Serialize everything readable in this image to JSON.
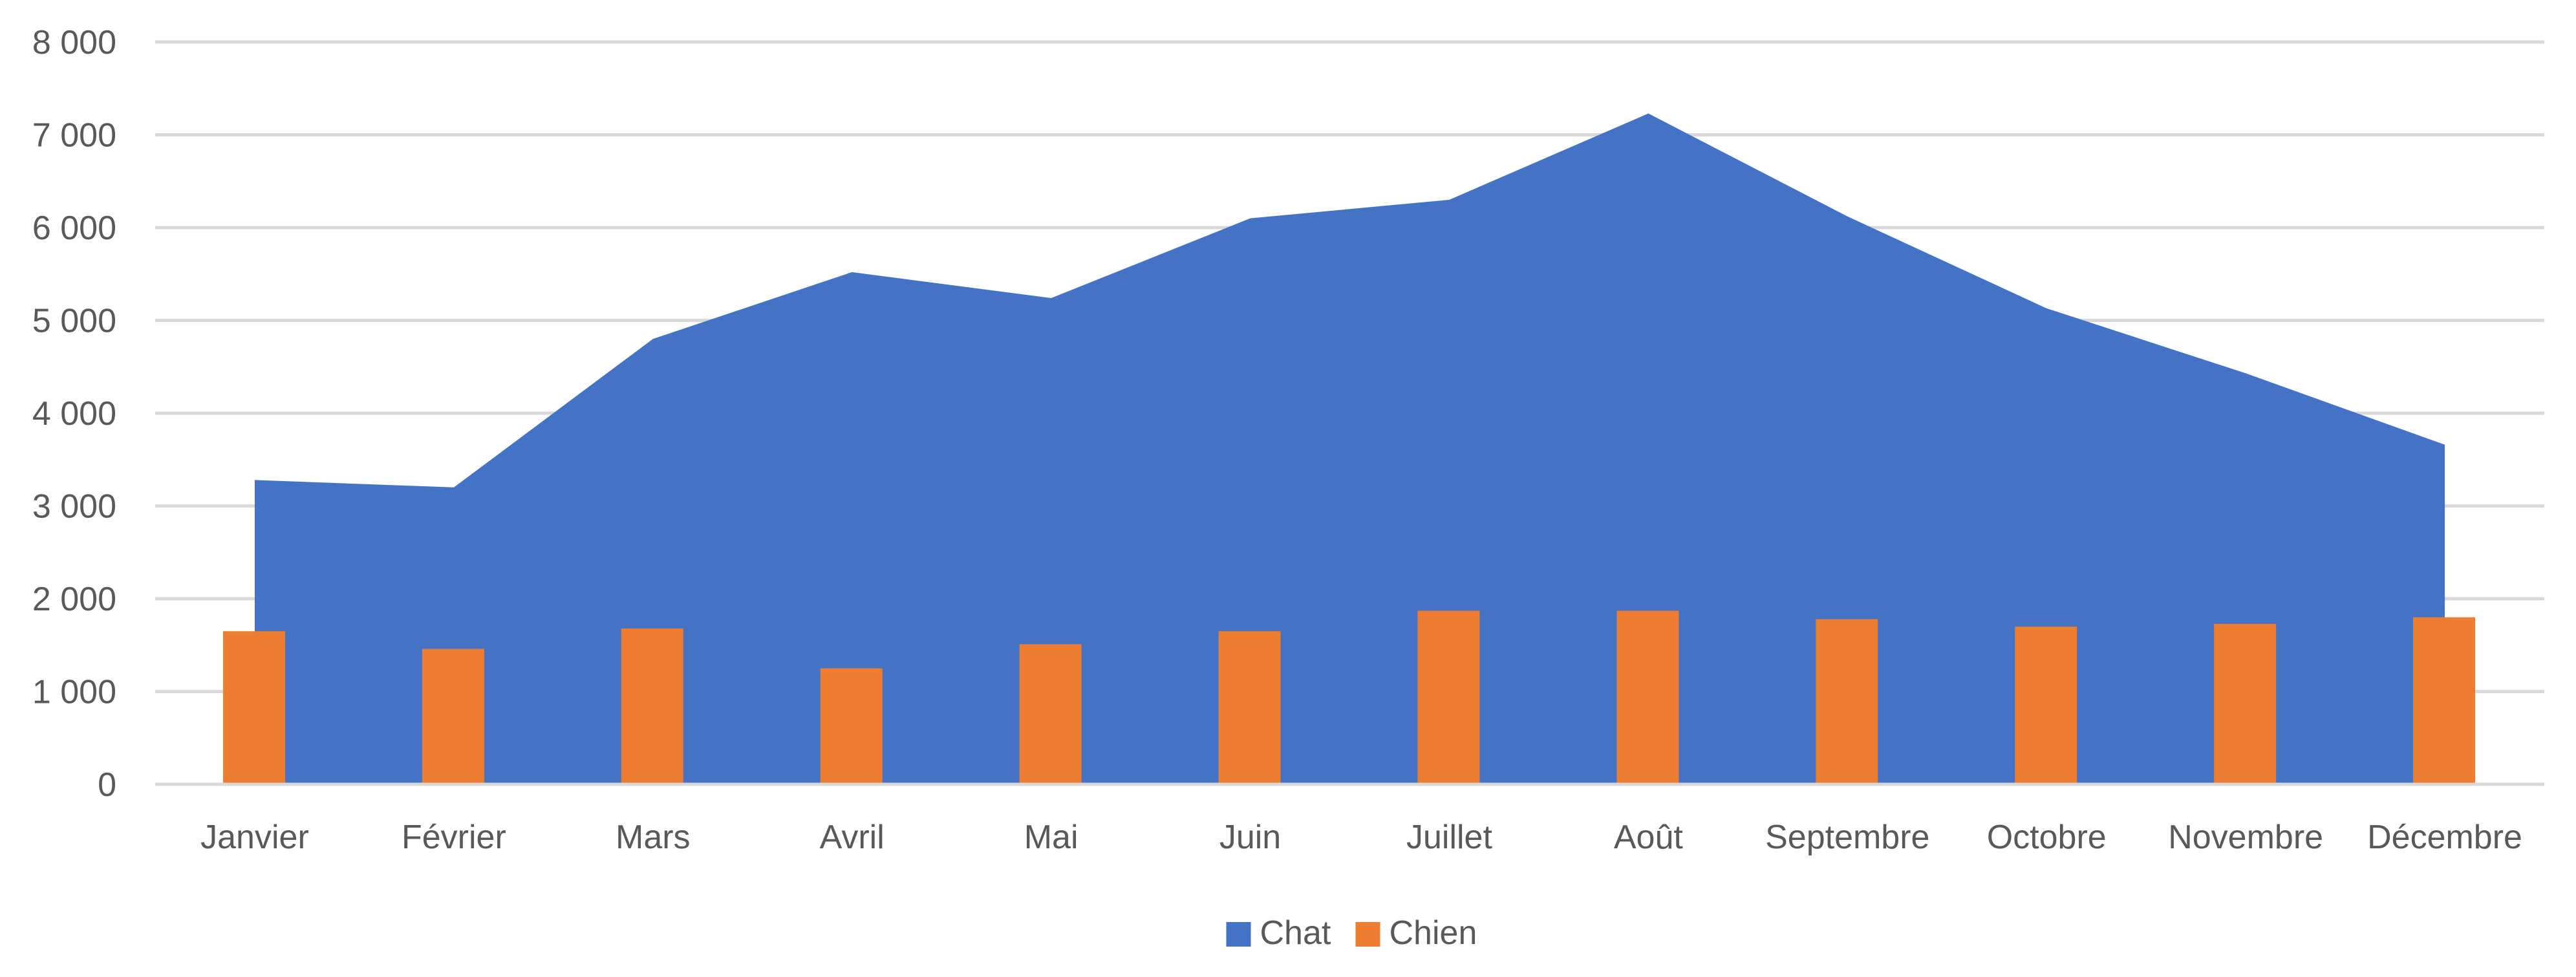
{
  "chart_data": {
    "type": "area",
    "title": "",
    "xlabel": "",
    "ylabel": "",
    "categories": [
      "Janvier",
      "Février",
      "Mars",
      "Avril",
      "Mai",
      "Juin",
      "Juillet",
      "Août",
      "Septembre",
      "Octobre",
      "Novembre",
      "Décembre"
    ],
    "ylim": [
      0,
      8000
    ],
    "yticks": [
      0,
      1000,
      2000,
      3000,
      4000,
      5000,
      6000,
      7000,
      8000
    ],
    "ytick_labels": [
      "0",
      "1 000",
      "2 000",
      "3 000",
      "4 000",
      "5 000",
      "6 000",
      "7 000",
      "8 000"
    ],
    "grid": true,
    "legend_position": "bottom",
    "series": [
      {
        "name": "Chat",
        "type": "area",
        "color": "#4472C4",
        "values": [
          3280,
          3200,
          4800,
          5520,
          5240,
          6100,
          6300,
          7230,
          6120,
          5130,
          4430,
          3660
        ]
      },
      {
        "name": "Chien",
        "type": "bar",
        "color": "#ED7D31",
        "values": [
          1650,
          1460,
          1680,
          1250,
          1510,
          1650,
          1870,
          1870,
          1780,
          1700,
          1730,
          1800
        ]
      }
    ]
  }
}
